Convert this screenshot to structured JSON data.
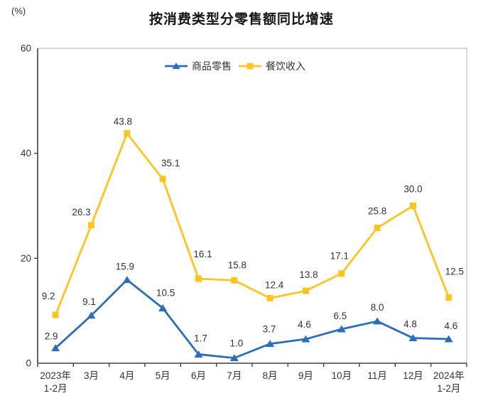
{
  "chart_data": {
    "type": "line",
    "title": "按消费类型分零售额同比增速",
    "unit": "(%)",
    "categories": [
      "2023年\n1-2月",
      "3月",
      "4月",
      "5月",
      "6月",
      "7月",
      "8月",
      "9月",
      "10月",
      "11月",
      "12月",
      "2024年\n1-2月"
    ],
    "series": [
      {
        "id": "goods-retail",
        "name": "商品零售",
        "color": "#2a6ebe",
        "marker": "triangle",
        "values": [
          2.9,
          9.1,
          15.9,
          10.5,
          1.7,
          1.0,
          3.7,
          4.6,
          6.5,
          8.0,
          4.8,
          4.6
        ]
      },
      {
        "id": "catering-income",
        "name": "餐饮收入",
        "color": "#ffc41e",
        "marker": "square",
        "values": [
          9.2,
          26.3,
          43.8,
          35.1,
          16.1,
          15.8,
          12.4,
          13.8,
          17.1,
          25.8,
          30.0,
          12.5
        ]
      }
    ],
    "ylim": [
      0,
      60
    ],
    "yticks": [
      0,
      20,
      40,
      60
    ],
    "grid": false,
    "legend_position": "top-center",
    "axis_color": "#404040",
    "border_color": "#bfbfbf",
    "label_color": "#333333"
  }
}
